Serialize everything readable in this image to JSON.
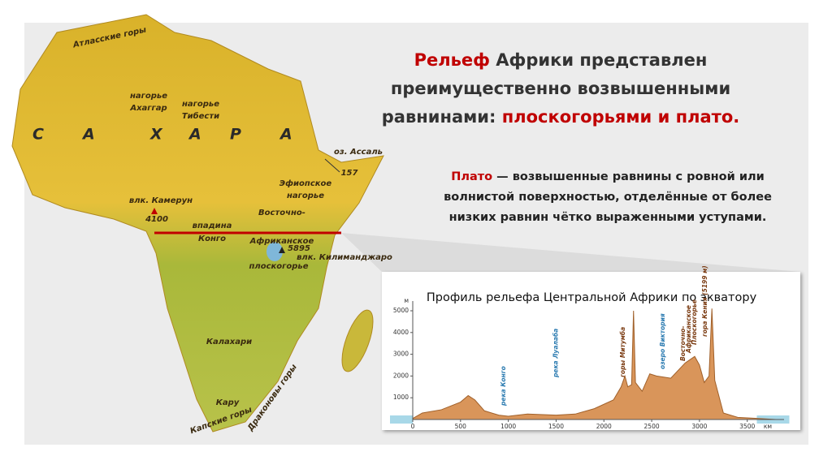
{
  "title": {
    "part1": "Рельеф",
    "part2": " Африки представлен",
    "line2": "преимущественно возвышенными",
    "part3": "равнинами: ",
    "part4": "плоскогорьями и плато."
  },
  "definition": {
    "term": "Плато",
    "line1": " — возвышенные равнины с ровной или",
    "line2": "волнистой поверхностью, отделённые от более",
    "line3": "низких равнин чётко выраженными уступами."
  },
  "map": {
    "sahara": [
      "С",
      "А",
      "Х",
      "А",
      "Р",
      "А"
    ],
    "labels": [
      "Атласские горы",
      "нагорье",
      "Ахаггар",
      "нагорье",
      "Тибести",
      "оз. Ассаль",
      "157",
      "Эфиопское",
      "нагорье",
      "влк. Камерун",
      "4100",
      "впадина",
      "Конго",
      "Восточно-",
      "Африканское",
      "5895",
      "влк. Килиманджаро",
      "плоскогорье",
      "Калахари",
      "Кару",
      "Капские горы",
      "Драконовы горы"
    ]
  },
  "profile": {
    "title": "Профиль рельефа Центральной Африки по экватору",
    "y_unit": "м",
    "x_unit": "км",
    "xlim": [
      0,
      3800
    ],
    "ylim": [
      0,
      5000
    ],
    "xticks": [
      0,
      500,
      1000,
      1500,
      2000,
      2500,
      3000,
      3500
    ],
    "yticks": [
      1000,
      2000,
      3000,
      4000,
      5000
    ],
    "color": "#d9955a",
    "x": [
      0,
      100,
      300,
      500,
      580,
      650,
      750,
      900,
      1000,
      1200,
      1500,
      1700,
      1900,
      2100,
      2180,
      2220,
      2250,
      2290,
      2310,
      2330,
      2400,
      2480,
      2550,
      2700,
      2850,
      2950,
      3000,
      3050,
      3100,
      3130,
      3160,
      3250,
      3400,
      3600,
      3800
    ],
    "values": [
      50,
      300,
      450,
      800,
      1100,
      900,
      400,
      200,
      150,
      250,
      200,
      250,
      500,
      900,
      1500,
      2000,
      1500,
      1600,
      5000,
      1700,
      1300,
      2100,
      2000,
      1900,
      2600,
      2900,
      2500,
      1700,
      2000,
      5100,
      1800,
      300,
      100,
      50,
      0
    ],
    "annotations": [
      {
        "text": "река Конго",
        "x": 950,
        "color": "#2a7ab0"
      },
      {
        "text": "река Луалаба",
        "x": 1500,
        "color": "#2a7ab0"
      },
      {
        "text": "горы Митумба",
        "x": 2200,
        "color": "#7a3a10"
      },
      {
        "text": "озеро Виктория",
        "x": 2620,
        "color": "#2a7ab0"
      },
      {
        "text": "Восточно-",
        "x": 2830,
        "color": "#7a3a10"
      },
      {
        "text": "Африканское",
        "x": 2890,
        "color": "#7a3a10"
      },
      {
        "text": "Плоскогорье",
        "x": 2950,
        "color": "#7a3a10"
      },
      {
        "text": "гора Кения (5199 м)",
        "x": 3060,
        "color": "#7a3a10"
      }
    ]
  }
}
